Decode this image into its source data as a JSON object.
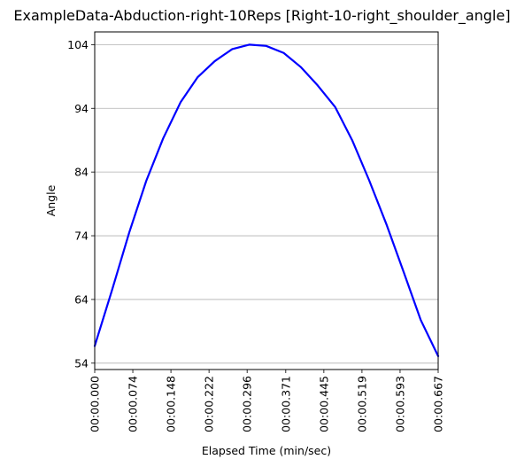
{
  "chart_data": {
    "type": "line",
    "title": "ExampleData-Abduction-right-10Reps [Right-10-right_shoulder_angle]",
    "xlabel": "Elapsed Time (min/sec)",
    "ylabel": "Angle",
    "grid": "y",
    "xlim": [
      0,
      0.667
    ],
    "ylim": [
      53,
      106
    ],
    "x_ticks": [
      {
        "value": 0.0,
        "label": "00:00.000"
      },
      {
        "value": 0.074,
        "label": "00:00.074"
      },
      {
        "value": 0.148,
        "label": "00:00.148"
      },
      {
        "value": 0.222,
        "label": "00:00.222"
      },
      {
        "value": 0.296,
        "label": "00:00.296"
      },
      {
        "value": 0.371,
        "label": "00:00.371"
      },
      {
        "value": 0.445,
        "label": "00:00.445"
      },
      {
        "value": 0.519,
        "label": "00:00.519"
      },
      {
        "value": 0.593,
        "label": "00:00.593"
      },
      {
        "value": 0.667,
        "label": "00:00.667"
      }
    ],
    "y_ticks": [
      {
        "value": 54,
        "label": "54"
      },
      {
        "value": 64,
        "label": "64"
      },
      {
        "value": 74,
        "label": "74"
      },
      {
        "value": 84,
        "label": "84"
      },
      {
        "value": 94,
        "label": "94"
      },
      {
        "value": 104,
        "label": "104"
      }
    ],
    "series": [
      {
        "color": "#0000ff",
        "x": [
          0.0,
          0.033,
          0.067,
          0.1,
          0.133,
          0.167,
          0.2,
          0.233,
          0.267,
          0.3,
          0.333,
          0.367,
          0.4,
          0.433,
          0.467,
          0.5,
          0.533,
          0.567,
          0.6,
          0.633,
          0.667
        ],
        "y": [
          56.7,
          65.3,
          74.5,
          82.6,
          89.3,
          95.0,
          98.9,
          101.4,
          103.3,
          104.0,
          103.8,
          102.7,
          100.5,
          97.6,
          94.2,
          89.0,
          82.7,
          75.7,
          68.3,
          60.8,
          55.1
        ]
      }
    ]
  }
}
